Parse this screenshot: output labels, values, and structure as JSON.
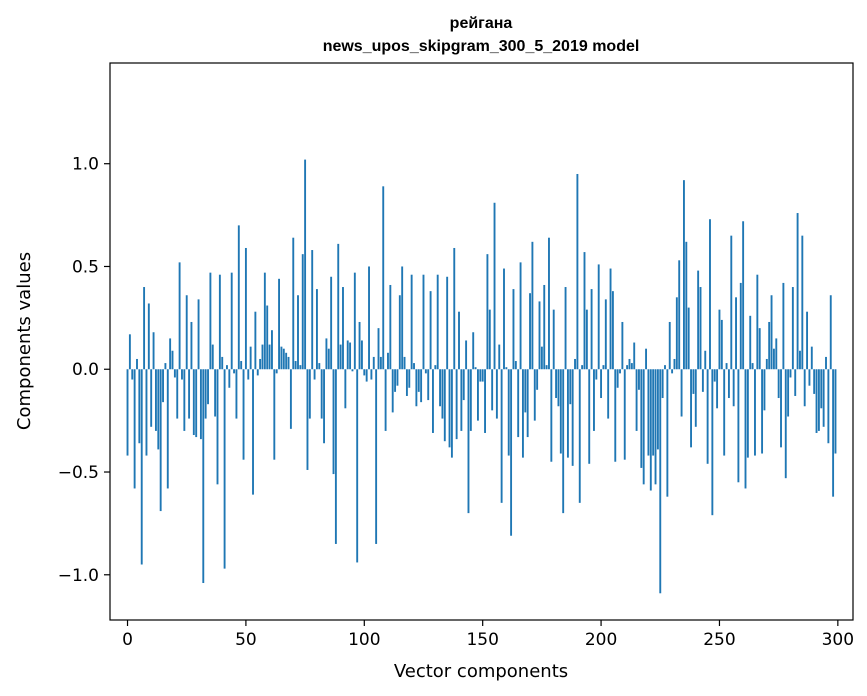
{
  "chart_data": {
    "type": "bar",
    "title": "рейгана",
    "subtitle": "news_upos_skipgram_300_5_2019 model",
    "xlabel": "Vector components",
    "ylabel": "Components values",
    "xlim": [
      -7.4,
      306.4
    ],
    "ylim": [
      -1.22,
      1.49
    ],
    "xticks": [
      0,
      50,
      100,
      150,
      200,
      250,
      300
    ],
    "yticks": [
      -1.0,
      -0.5,
      0.0,
      0.5,
      1.0
    ],
    "ytick_labels": [
      "−1.0",
      "−0.5",
      "0.0",
      "0.5",
      "1.0"
    ],
    "grid": false,
    "bar_color": "#1f77b4",
    "values": [
      -0.42,
      0.17,
      -0.05,
      -0.58,
      0.05,
      -0.36,
      -0.95,
      0.4,
      -0.42,
      0.32,
      -0.28,
      0.18,
      -0.3,
      -0.39,
      -0.69,
      -0.16,
      0.03,
      -0.58,
      0.15,
      0.09,
      -0.04,
      -0.24,
      0.52,
      -0.05,
      -0.3,
      0.36,
      -0.24,
      0.23,
      -0.32,
      -0.33,
      0.34,
      -0.34,
      -1.04,
      -0.24,
      -0.17,
      0.47,
      0.12,
      -0.23,
      -0.56,
      0.46,
      0.06,
      -0.97,
      0.02,
      -0.09,
      0.47,
      -0.02,
      -0.24,
      0.7,
      0.04,
      -0.44,
      0.59,
      -0.05,
      0.11,
      -0.61,
      0.28,
      -0.03,
      0.05,
      0.12,
      0.47,
      0.31,
      0.12,
      0.19,
      -0.44,
      -0.02,
      0.44,
      0.11,
      0.1,
      0.08,
      0.06,
      -0.29,
      0.64,
      0.04,
      0.36,
      0.02,
      0.56,
      1.02,
      -0.49,
      -0.24,
      0.58,
      -0.05,
      0.39,
      0.03,
      -0.24,
      -0.36,
      0.15,
      0.1,
      0.45,
      -0.51,
      -0.85,
      0.61,
      0.12,
      0.4,
      -0.19,
      0.14,
      0.13,
      -0.01,
      0.47,
      -0.94,
      0.23,
      0.14,
      -0.03,
      -0.06,
      0.5,
      -0.05,
      0.06,
      -0.85,
      0.2,
      0.06,
      0.89,
      -0.3,
      0.08,
      0.41,
      -0.21,
      -0.11,
      -0.08,
      0.36,
      0.5,
      0.06,
      -0.13,
      -0.09,
      0.46,
      0.03,
      -0.18,
      -0.11,
      -0.16,
      0.46,
      -0.02,
      -0.15,
      0.38,
      -0.31,
      0.02,
      0.46,
      -0.18,
      -0.24,
      -0.35,
      0.45,
      -0.38,
      -0.43,
      0.59,
      -0.34,
      0.28,
      -0.3,
      -0.15,
      0.14,
      -0.7,
      -0.3,
      0.18,
      0.01,
      -0.25,
      -0.06,
      -0.06,
      -0.31,
      0.56,
      0.29,
      -0.2,
      0.81,
      -0.24,
      0.12,
      -0.65,
      0.49,
      0.01,
      -0.42,
      -0.81,
      0.39,
      0.04,
      -0.33,
      0.52,
      -0.43,
      -0.21,
      -0.33,
      0.37,
      0.62,
      -0.25,
      -0.1,
      0.33,
      0.11,
      0.41,
      0.02,
      0.64,
      -0.45,
      0.29,
      -0.14,
      -0.18,
      -0.41,
      -0.7,
      0.4,
      -0.43,
      -0.17,
      -0.47,
      0.05,
      0.95,
      -0.65,
      0.02,
      0.57,
      0.29,
      -0.46,
      0.39,
      -0.3,
      -0.05,
      0.51,
      -0.14,
      0.02,
      0.34,
      -0.24,
      0.49,
      0.38,
      -0.45,
      -0.09,
      -0.02,
      0.23,
      -0.44,
      0.02,
      0.05,
      0.03,
      0.13,
      -0.3,
      -0.1,
      -0.48,
      -0.56,
      0.1,
      -0.42,
      -0.59,
      -0.42,
      -0.56,
      -0.39,
      -1.09,
      -0.14,
      0.02,
      -0.62,
      0.23,
      -0.02,
      0.05,
      0.35,
      0.53,
      -0.23,
      0.92,
      0.62,
      0.3,
      -0.38,
      -0.12,
      -0.28,
      0.48,
      0.4,
      -0.11,
      0.09,
      -0.46,
      0.73,
      -0.71,
      -0.06,
      -0.19,
      0.29,
      0.24,
      -0.42,
      0.03,
      -0.14,
      0.65,
      -0.18,
      0.35,
      -0.55,
      0.42,
      0.72,
      -0.58,
      -0.43,
      0.26,
      0.03,
      -0.42,
      0.46,
      0.2,
      -0.41,
      -0.2,
      0.05,
      0.23,
      0.36,
      0.1,
      0.15,
      -0.14,
      -0.38,
      0.42,
      -0.53,
      -0.23,
      -0.04,
      0.4,
      -0.13,
      0.76,
      0.09,
      0.65,
      -0.18,
      0.28,
      -0.08,
      0.11,
      -0.12,
      -0.31,
      -0.3,
      -0.19,
      -0.28,
      0.06,
      -0.36,
      0.36,
      -0.62,
      -0.41
    ]
  }
}
